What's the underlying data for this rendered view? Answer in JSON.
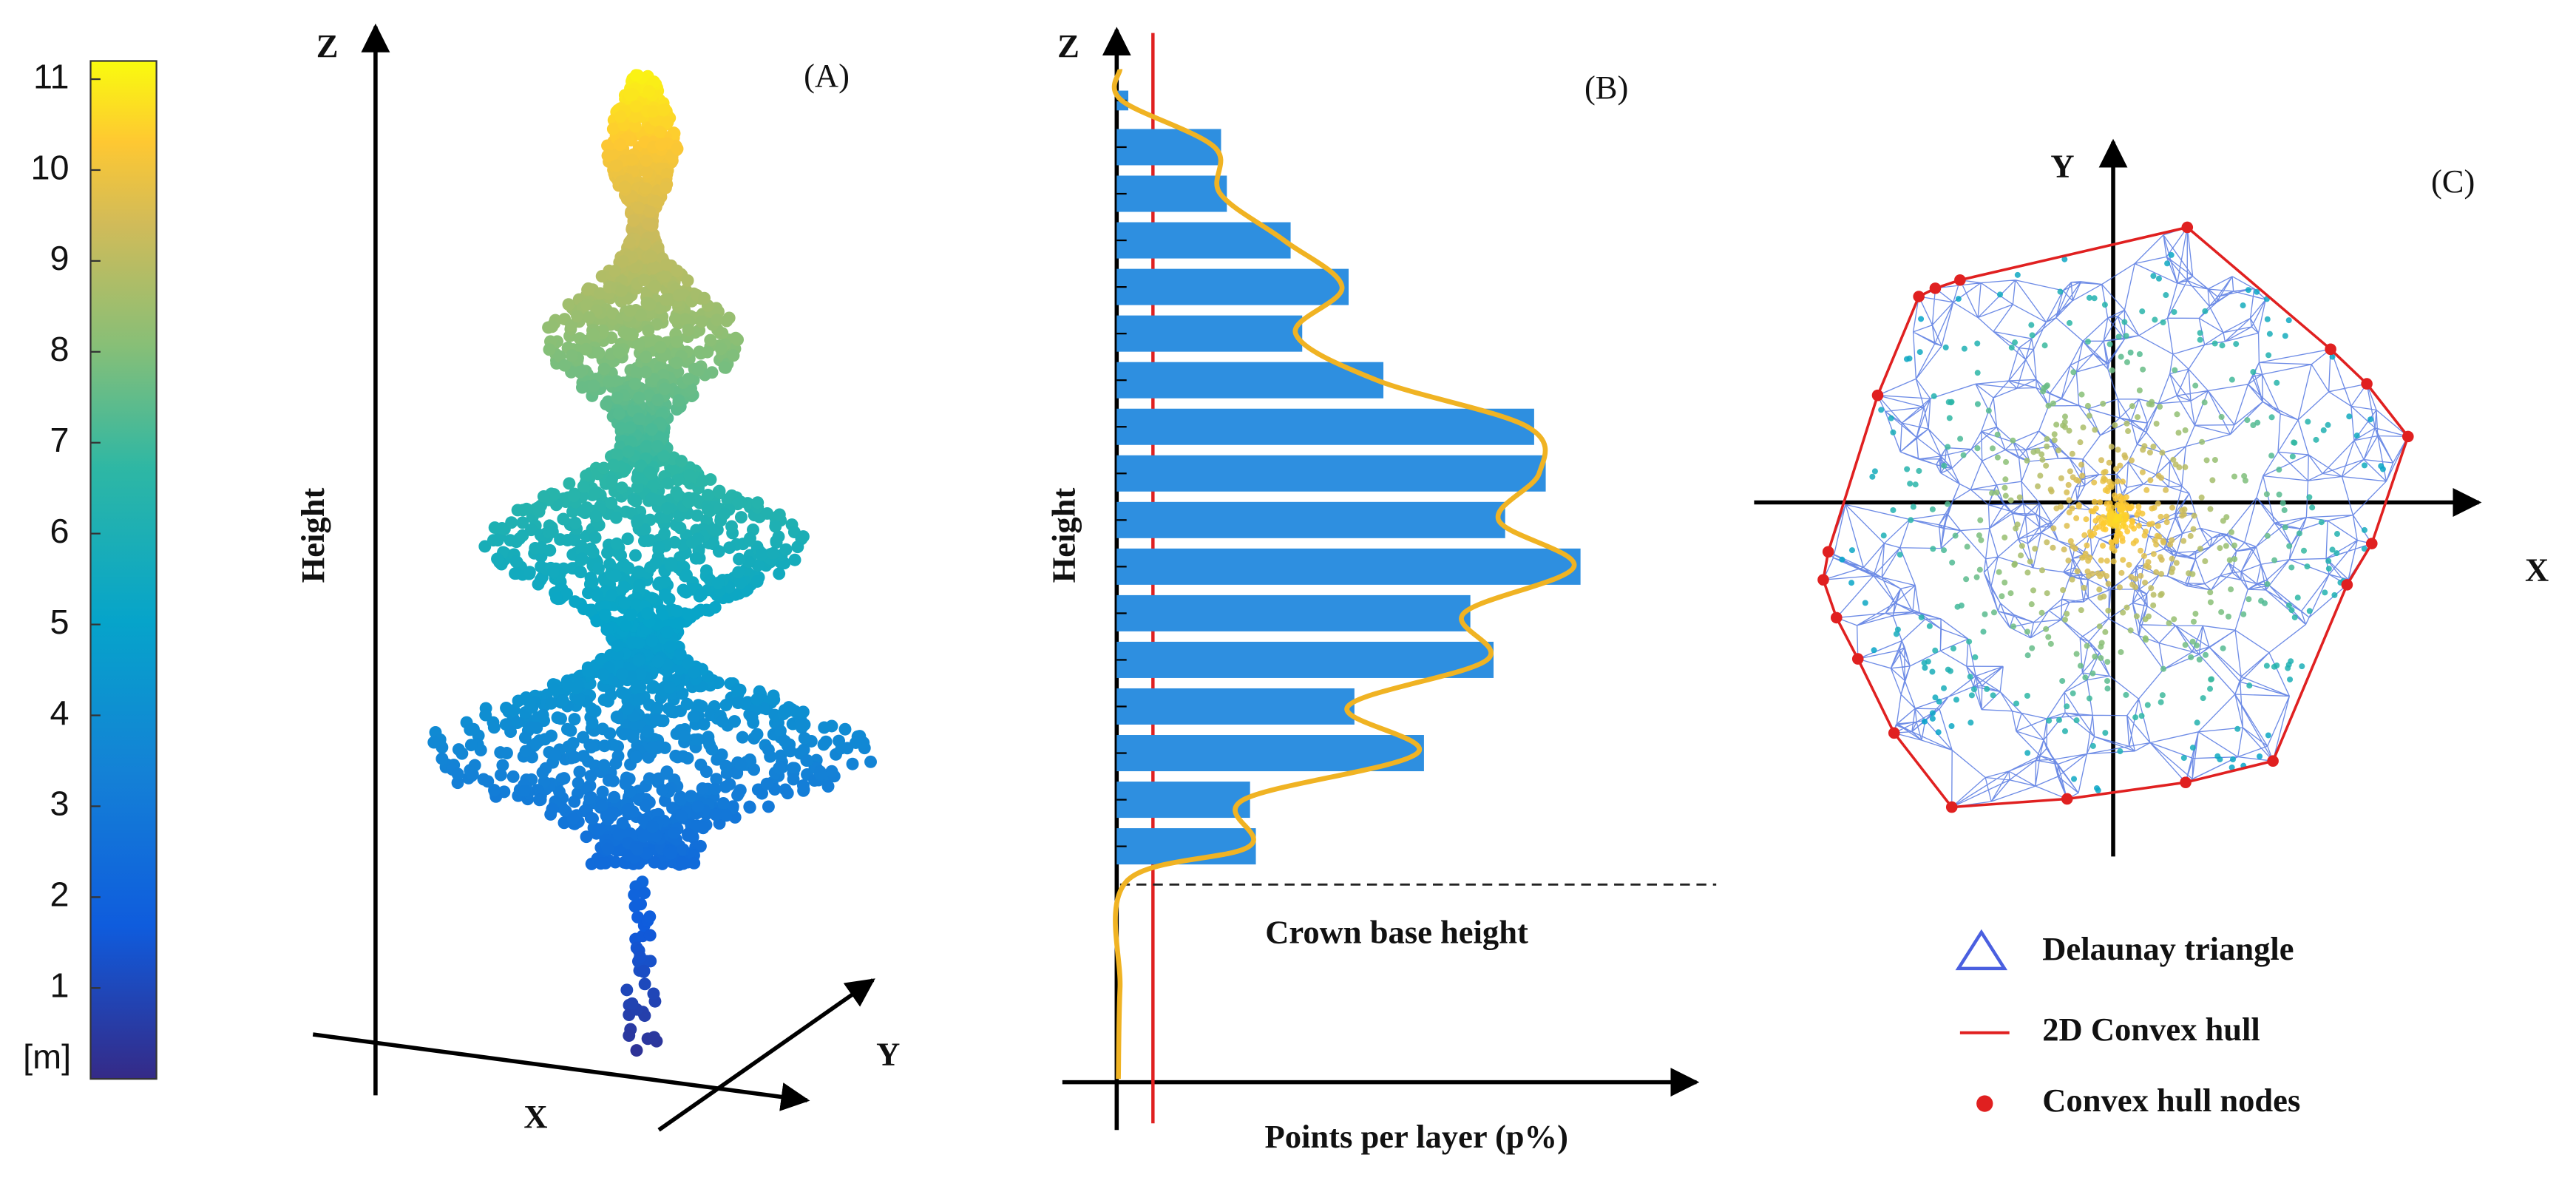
{
  "colorbar": {
    "ticks": [
      1,
      2,
      3,
      4,
      5,
      6,
      7,
      8,
      9,
      10,
      11
    ],
    "unit": "[m]",
    "lim": [
      0,
      11.2
    ]
  },
  "panel_a": {
    "label": "(A)",
    "z_axis": "Z",
    "x_axis": "X",
    "y_axis": "Y",
    "height_label": "Height"
  },
  "chart_data": {
    "type": "bar",
    "label": "(B)",
    "z_axis": "Z",
    "ylabel": "Height",
    "xlabel": "Points per layer (p%)",
    "annotation": "Crown base height",
    "color": "#2e8fe0",
    "curve_color": "#f0b323",
    "xlim": [
      0,
      100
    ],
    "values": [
      2,
      18,
      19,
      30,
      40,
      32,
      46,
      72,
      74,
      67,
      80,
      61,
      65,
      41,
      53,
      23,
      24
    ]
  },
  "panel_c": {
    "label": "(C)",
    "x_axis": "X",
    "y_axis": "Y",
    "legend": [
      "Delaunay triangle",
      "2D Convex hull",
      "Convex hull nodes"
    ]
  }
}
